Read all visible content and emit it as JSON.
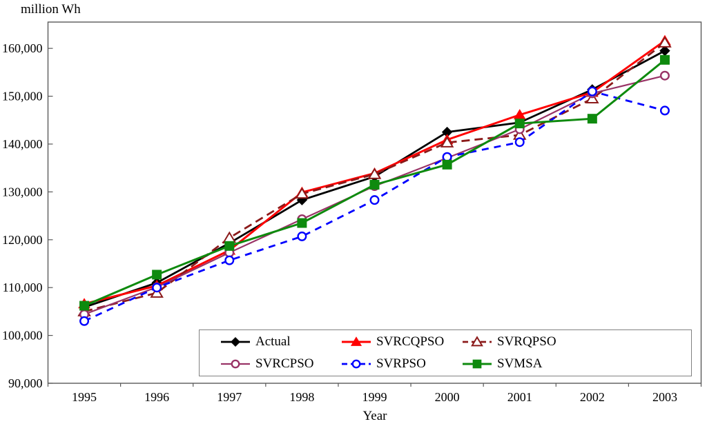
{
  "chart": {
    "y_axis_title": "million Wh",
    "x_axis_title": "Year"
  },
  "chart_data": {
    "type": "line",
    "categories": [
      "1995",
      "1996",
      "1997",
      "1998",
      "1999",
      "2000",
      "2001",
      "2002",
      "2003"
    ],
    "series": [
      {
        "name": "Actual",
        "color": "#000000",
        "line": "solid",
        "marker": "diamond-filled",
        "width": 2.8,
        "values": [
          105900,
          111000,
          119300,
          128300,
          133200,
          142500,
          144500,
          151400,
          159500
        ]
      },
      {
        "name": "SVRCQPSO",
        "color": "#FF0000",
        "line": "solid",
        "marker": "triangle-filled",
        "width": 3,
        "values": [
          106600,
          110400,
          117800,
          129900,
          133900,
          140900,
          146100,
          150800,
          161600
        ]
      },
      {
        "name": "SVRQPSO",
        "color": "#8B1A1A",
        "line": "dashed",
        "marker": "triangle-open",
        "width": 2.8,
        "dash": "12 7",
        "values": [
          105000,
          108900,
          120400,
          129600,
          133700,
          140300,
          141900,
          149500,
          161200
        ]
      },
      {
        "name": "SVRCPSO",
        "color": "#993366",
        "line": "solid",
        "marker": "circle-open",
        "width": 2.2,
        "values": [
          104400,
          110100,
          117300,
          124300,
          131200,
          137100,
          143100,
          150600,
          154300
        ]
      },
      {
        "name": "SVRPSO",
        "color": "#0000FF",
        "line": "dashed",
        "marker": "circle-open",
        "width": 2.8,
        "dash": "10 8",
        "values": [
          103000,
          110000,
          115700,
          120700,
          128300,
          137300,
          140400,
          151000,
          147000
        ]
      },
      {
        "name": "SVMSA",
        "color": "#0E8A0E",
        "line": "solid",
        "marker": "square-filled",
        "width": 3,
        "values": [
          106200,
          112700,
          118700,
          123500,
          131500,
          135700,
          144300,
          145300,
          157600
        ]
      }
    ],
    "y_ticks": [
      {
        "v": 90000,
        "label": "90,000"
      },
      {
        "v": 100000,
        "label": "100,000"
      },
      {
        "v": 110000,
        "label": "110,000"
      },
      {
        "v": 120000,
        "label": "120,000"
      },
      {
        "v": 130000,
        "label": "130,000"
      },
      {
        "v": 140000,
        "label": "140,000"
      },
      {
        "v": 150000,
        "label": "150,000"
      },
      {
        "v": 160000,
        "label": "160,000"
      }
    ],
    "ylim": [
      90000,
      165500
    ],
    "xlabel": "Year",
    "ylabel": "million Wh",
    "grid": false,
    "legend_position": "bottom-inside"
  }
}
